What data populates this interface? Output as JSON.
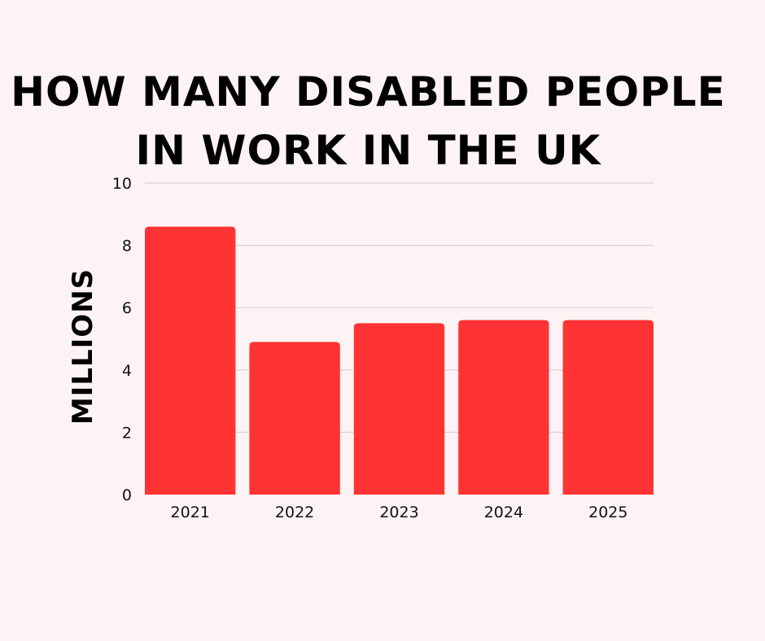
{
  "chart_data": {
    "type": "bar",
    "title_lines": [
      "HOW MANY DISABLED PEOPLE",
      "IN WORK IN THE UK"
    ],
    "xlabel": "",
    "ylabel": "MILLIONS",
    "categories": [
      "2021",
      "2022",
      "2023",
      "2024",
      "2025"
    ],
    "values": [
      8.6,
      4.9,
      5.5,
      5.6,
      5.6
    ],
    "ylim": [
      0,
      10
    ],
    "yticks": [
      "0",
      "2",
      "4",
      "6",
      "8",
      "10"
    ],
    "grid": true,
    "legend": "none",
    "bar_color": "#ff3333",
    "grid_color": "#d9d2d3"
  }
}
